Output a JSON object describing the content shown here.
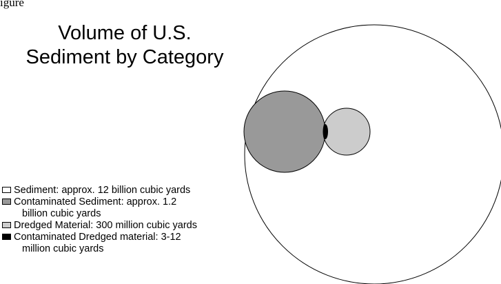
{
  "header_fragment": "igure",
  "title": {
    "line1": "Volume of U.S.",
    "line2": "Sediment by Category"
  },
  "legend": [
    {
      "id": "sediment",
      "line1": "Sediment: approx. 12 billion cubic yards",
      "line2": "",
      "color": "#ffffff"
    },
    {
      "id": "contaminated-sediment",
      "line1": "Contaminated Sediment: approx. 1.2",
      "line2": "billion cubic yards",
      "color": "#999999"
    },
    {
      "id": "dredged-material",
      "line1": "Dredged Material: 300 million cubic yards",
      "line2": "",
      "color": "#cccccc"
    },
    {
      "id": "contaminated-dredged-material",
      "line1": "Contaminated Dredged material:  3-12",
      "line2": "million cubic yards",
      "color": "#000000"
    }
  ]
}
